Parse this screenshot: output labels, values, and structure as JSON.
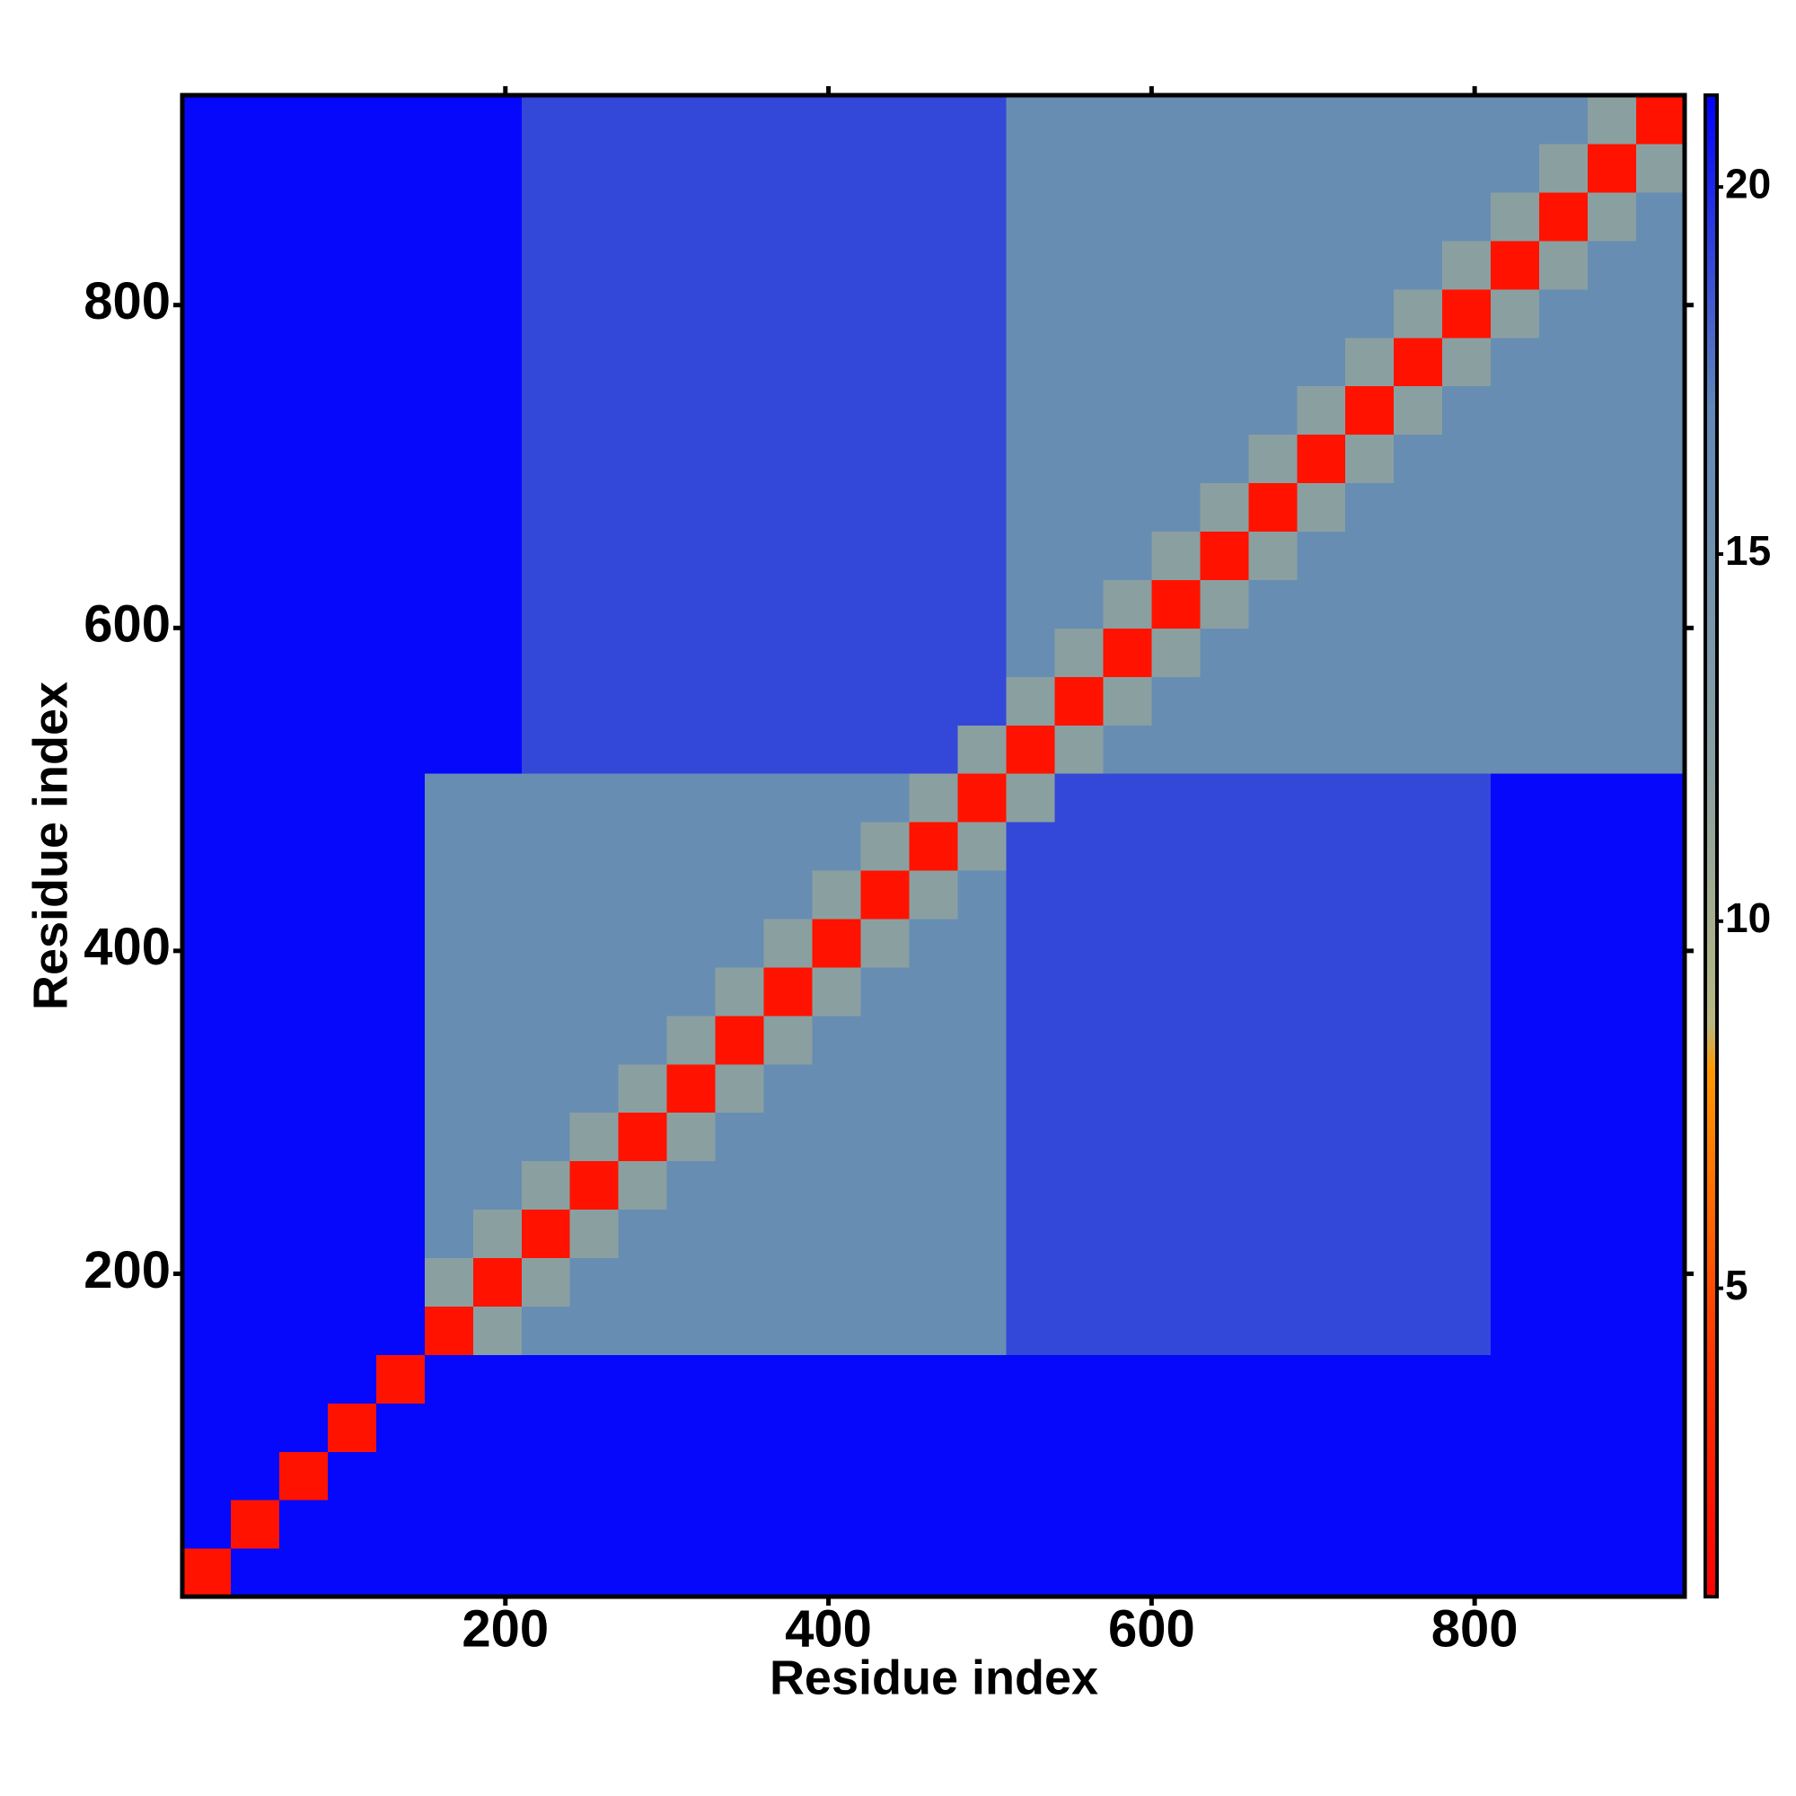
{
  "chart_data": {
    "type": "heatmap",
    "x_label": "Residue index",
    "y_label": "Residue index",
    "xlim": [
      0,
      930
    ],
    "ylim": [
      0,
      930
    ],
    "xticks": [
      200,
      400,
      600,
      800
    ],
    "yticks": [
      200,
      400,
      600,
      800
    ],
    "x_bins": [
      0,
      30,
      60,
      90,
      120,
      150,
      180,
      210,
      240,
      270,
      300,
      330,
      360,
      390,
      420,
      450,
      480,
      510,
      540,
      570,
      600,
      630,
      660,
      690,
      720,
      750,
      780,
      810,
      840,
      870,
      900,
      930
    ],
    "y_bins": [
      0,
      30,
      60,
      90,
      120,
      150,
      180,
      210,
      240,
      270,
      300,
      330,
      360,
      390,
      420,
      450,
      480,
      510,
      540,
      570,
      600,
      630,
      660,
      690,
      720,
      750,
      780,
      810,
      840,
      870,
      900,
      930
    ],
    "z": [
      [
        2,
        21,
        21,
        21,
        21,
        21,
        21,
        21,
        21,
        21,
        21,
        21,
        21,
        21,
        21,
        21,
        21,
        21,
        21,
        21,
        21,
        21,
        21,
        21,
        21,
        21,
        21,
        21,
        21,
        21,
        21
      ],
      [
        21,
        2,
        21,
        21,
        21,
        21,
        21,
        21,
        21,
        21,
        21,
        21,
        21,
        21,
        21,
        21,
        21,
        21,
        21,
        21,
        21,
        21,
        21,
        21,
        21,
        21,
        21,
        21,
        21,
        21,
        21
      ],
      [
        21,
        21,
        2,
        21,
        21,
        21,
        21,
        21,
        21,
        21,
        21,
        21,
        21,
        21,
        21,
        21,
        21,
        21,
        21,
        21,
        21,
        21,
        21,
        21,
        21,
        21,
        21,
        21,
        21,
        21,
        21
      ],
      [
        21,
        21,
        21,
        2,
        21,
        21,
        21,
        21,
        21,
        21,
        21,
        21,
        21,
        21,
        21,
        21,
        21,
        21,
        21,
        21,
        21,
        21,
        21,
        21,
        21,
        21,
        21,
        21,
        21,
        21,
        21
      ],
      [
        21,
        21,
        21,
        21,
        2,
        21,
        21,
        21,
        21,
        21,
        21,
        21,
        21,
        21,
        21,
        21,
        21,
        21,
        21,
        21,
        21,
        21,
        21,
        21,
        21,
        21,
        21,
        21,
        21,
        21,
        21
      ],
      [
        21,
        21,
        21,
        21,
        21,
        2,
        12,
        16,
        16,
        16,
        16,
        16,
        16,
        16,
        16,
        16,
        16,
        19,
        19,
        19,
        19,
        19,
        19,
        19,
        19,
        19,
        19,
        21,
        21,
        21,
        21
      ],
      [
        21,
        21,
        21,
        21,
        21,
        12,
        2,
        12,
        16,
        16,
        16,
        16,
        16,
        16,
        16,
        16,
        16,
        19,
        19,
        19,
        19,
        19,
        19,
        19,
        19,
        19,
        19,
        21,
        21,
        21,
        21
      ],
      [
        21,
        21,
        21,
        21,
        21,
        16,
        12,
        2,
        12,
        16,
        16,
        16,
        16,
        16,
        16,
        16,
        16,
        19,
        19,
        19,
        19,
        19,
        19,
        19,
        19,
        19,
        19,
        21,
        21,
        21,
        21
      ],
      [
        21,
        21,
        21,
        21,
        21,
        16,
        16,
        12,
        2,
        12,
        16,
        16,
        16,
        16,
        16,
        16,
        16,
        19,
        19,
        19,
        19,
        19,
        19,
        19,
        19,
        19,
        19,
        21,
        21,
        21,
        21
      ],
      [
        21,
        21,
        21,
        21,
        21,
        16,
        16,
        16,
        12,
        2,
        12,
        16,
        16,
        16,
        16,
        16,
        16,
        19,
        19,
        19,
        19,
        19,
        19,
        19,
        19,
        19,
        19,
        21,
        21,
        21,
        21
      ],
      [
        21,
        21,
        21,
        21,
        21,
        16,
        16,
        16,
        16,
        12,
        2,
        12,
        16,
        16,
        16,
        16,
        16,
        19,
        19,
        19,
        19,
        19,
        19,
        19,
        19,
        19,
        19,
        21,
        21,
        21,
        21
      ],
      [
        21,
        21,
        21,
        21,
        21,
        16,
        16,
        16,
        16,
        16,
        12,
        2,
        12,
        16,
        16,
        16,
        16,
        19,
        19,
        19,
        19,
        19,
        19,
        19,
        19,
        19,
        19,
        21,
        21,
        21,
        21
      ],
      [
        21,
        21,
        21,
        21,
        21,
        16,
        16,
        16,
        16,
        16,
        16,
        12,
        2,
        12,
        16,
        16,
        16,
        19,
        19,
        19,
        19,
        19,
        19,
        19,
        19,
        19,
        19,
        21,
        21,
        21,
        21
      ],
      [
        21,
        21,
        21,
        21,
        21,
        16,
        16,
        16,
        16,
        16,
        16,
        16,
        12,
        2,
        12,
        16,
        16,
        19,
        19,
        19,
        19,
        19,
        19,
        19,
        19,
        19,
        19,
        21,
        21,
        21,
        21
      ],
      [
        21,
        21,
        21,
        21,
        21,
        16,
        16,
        16,
        16,
        16,
        16,
        16,
        16,
        12,
        2,
        12,
        16,
        19,
        19,
        19,
        19,
        19,
        19,
        19,
        19,
        19,
        19,
        21,
        21,
        21,
        21
      ],
      [
        21,
        21,
        21,
        21,
        21,
        16,
        16,
        16,
        16,
        16,
        16,
        16,
        16,
        16,
        12,
        2,
        12,
        19,
        19,
        19,
        19,
        19,
        19,
        19,
        19,
        19,
        19,
        21,
        21,
        21,
        21
      ],
      [
        21,
        21,
        21,
        21,
        21,
        16,
        16,
        16,
        16,
        16,
        16,
        16,
        16,
        16,
        16,
        12,
        2,
        12,
        19,
        19,
        19,
        19,
        19,
        19,
        19,
        19,
        19,
        21,
        21,
        21,
        21
      ],
      [
        21,
        21,
        21,
        21,
        21,
        21,
        21,
        19,
        19,
        19,
        19,
        19,
        19,
        19,
        19,
        19,
        12,
        2,
        12,
        16,
        16,
        16,
        16,
        16,
        16,
        16,
        16,
        16,
        16,
        16,
        16
      ],
      [
        21,
        21,
        21,
        21,
        21,
        21,
        21,
        19,
        19,
        19,
        19,
        19,
        19,
        19,
        19,
        19,
        19,
        12,
        2,
        12,
        16,
        16,
        16,
        16,
        16,
        16,
        16,
        16,
        16,
        16,
        16
      ],
      [
        21,
        21,
        21,
        21,
        21,
        21,
        21,
        19,
        19,
        19,
        19,
        19,
        19,
        19,
        19,
        19,
        19,
        16,
        12,
        2,
        12,
        16,
        16,
        16,
        16,
        16,
        16,
        16,
        16,
        16,
        16
      ],
      [
        21,
        21,
        21,
        21,
        21,
        21,
        21,
        19,
        19,
        19,
        19,
        19,
        19,
        19,
        19,
        19,
        19,
        16,
        16,
        12,
        2,
        12,
        16,
        16,
        16,
        16,
        16,
        16,
        16,
        16,
        16
      ],
      [
        21,
        21,
        21,
        21,
        21,
        21,
        21,
        19,
        19,
        19,
        19,
        19,
        19,
        19,
        19,
        19,
        19,
        16,
        16,
        16,
        12,
        2,
        12,
        16,
        16,
        16,
        16,
        16,
        16,
        16,
        16
      ],
      [
        21,
        21,
        21,
        21,
        21,
        21,
        21,
        19,
        19,
        19,
        19,
        19,
        19,
        19,
        19,
        19,
        19,
        16,
        16,
        16,
        16,
        12,
        2,
        12,
        16,
        16,
        16,
        16,
        16,
        16,
        16
      ],
      [
        21,
        21,
        21,
        21,
        21,
        21,
        21,
        19,
        19,
        19,
        19,
        19,
        19,
        19,
        19,
        19,
        19,
        16,
        16,
        16,
        16,
        16,
        12,
        2,
        12,
        16,
        16,
        16,
        16,
        16,
        16
      ],
      [
        21,
        21,
        21,
        21,
        21,
        21,
        21,
        19,
        19,
        19,
        19,
        19,
        19,
        19,
        19,
        19,
        19,
        16,
        16,
        16,
        16,
        16,
        16,
        12,
        2,
        12,
        16,
        16,
        16,
        16,
        16
      ],
      [
        21,
        21,
        21,
        21,
        21,
        21,
        21,
        19,
        19,
        19,
        19,
        19,
        19,
        19,
        19,
        19,
        19,
        16,
        16,
        16,
        16,
        16,
        16,
        16,
        12,
        2,
        12,
        16,
        16,
        16,
        16
      ],
      [
        21,
        21,
        21,
        21,
        21,
        21,
        21,
        19,
        19,
        19,
        19,
        19,
        19,
        19,
        19,
        19,
        19,
        16,
        16,
        16,
        16,
        16,
        16,
        16,
        16,
        12,
        2,
        12,
        16,
        16,
        16
      ],
      [
        21,
        21,
        21,
        21,
        21,
        21,
        21,
        19,
        19,
        19,
        19,
        19,
        19,
        19,
        19,
        19,
        19,
        16,
        16,
        16,
        16,
        16,
        16,
        16,
        16,
        16,
        12,
        2,
        12,
        16,
        16
      ],
      [
        21,
        21,
        21,
        21,
        21,
        21,
        21,
        19,
        19,
        19,
        19,
        19,
        19,
        19,
        19,
        19,
        19,
        16,
        16,
        16,
        16,
        16,
        16,
        16,
        16,
        16,
        16,
        12,
        2,
        12,
        16
      ],
      [
        21,
        21,
        21,
        21,
        21,
        21,
        21,
        19,
        19,
        19,
        19,
        19,
        19,
        19,
        19,
        19,
        19,
        16,
        16,
        16,
        16,
        16,
        16,
        16,
        16,
        16,
        16,
        16,
        12,
        2,
        12
      ],
      [
        21,
        21,
        21,
        21,
        21,
        21,
        21,
        19,
        19,
        19,
        19,
        19,
        19,
        19,
        19,
        19,
        19,
        16,
        16,
        16,
        16,
        16,
        16,
        16,
        16,
        16,
        16,
        16,
        16,
        12,
        2
      ]
    ],
    "clim": [
      0.8,
      21.25
    ],
    "cticks": [
      5,
      10,
      15,
      20
    ],
    "colormap": [
      {
        "value": 0.8,
        "color": "#ff0000"
      },
      {
        "value": 4,
        "color": "#ff3300"
      },
      {
        "value": 8,
        "color": "#ff9900"
      },
      {
        "value": 8.6,
        "color": "#b8b880"
      },
      {
        "value": 12,
        "color": "#8aa0a0"
      },
      {
        "value": 17,
        "color": "#6088b8"
      },
      {
        "value": 21.25,
        "color": "#0000ff"
      }
    ]
  }
}
